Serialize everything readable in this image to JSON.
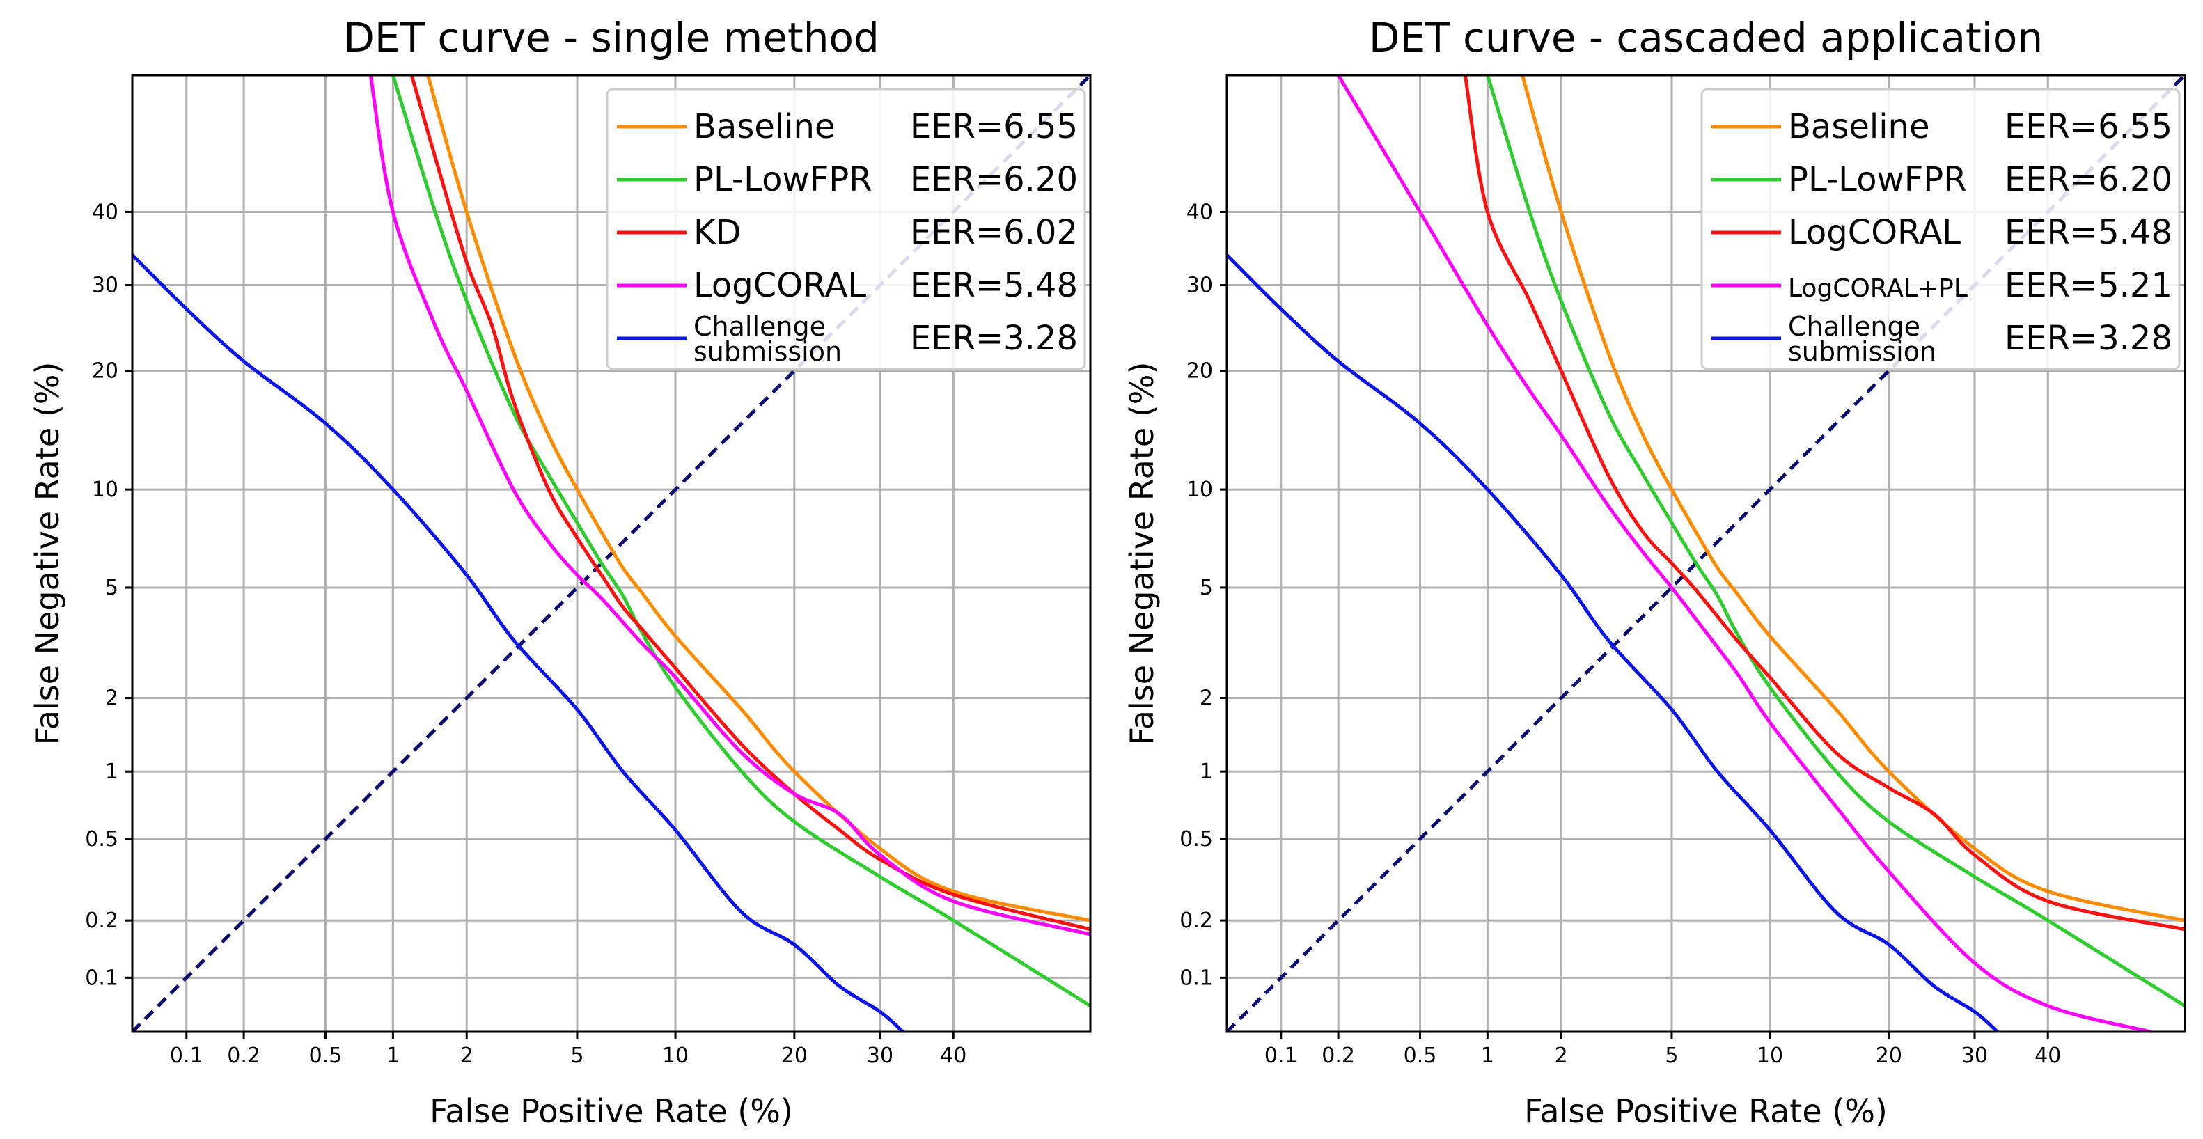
{
  "chart_data": [
    {
      "type": "line",
      "title": "DET curve - single method",
      "xlabel": "False Positive Rate (%)",
      "ylabel": "False Negative Rate (%)",
      "scale": "probit",
      "xlim": [
        0.05,
        60
      ],
      "ylim": [
        0.05,
        60
      ],
      "xticks": [
        0.1,
        0.2,
        0.5,
        1,
        2,
        5,
        10,
        20,
        30,
        40
      ],
      "xtick_labels": [
        "0.1",
        "0.2",
        "0.5",
        "1",
        "2",
        "5",
        "10",
        "20",
        "30",
        "40"
      ],
      "yticks": [
        0.1,
        0.2,
        0.5,
        1,
        2,
        5,
        10,
        20,
        30,
        40
      ],
      "ytick_labels": [
        "0.1",
        "0.2",
        "0.5",
        "1",
        "2",
        "5",
        "10",
        "20",
        "30",
        "40"
      ],
      "grid": true,
      "legend_position": "top-right",
      "series": [
        {
          "name": "Baseline",
          "eer_label": "EER=6.55",
          "color": "#ff8c00",
          "x": [
            1.4,
            2,
            3,
            4,
            5,
            6,
            7,
            8,
            10,
            15,
            20,
            30,
            40,
            60
          ],
          "y": [
            60,
            40,
            22,
            14,
            10,
            7.5,
            5.8,
            4.8,
            3.4,
            1.8,
            1.0,
            0.45,
            0.28,
            0.2
          ]
        },
        {
          "name": "PL-LowFPR",
          "eer_label": "EER=6.20",
          "color": "#2ecc2e",
          "x": [
            1.0,
            1.5,
            2,
            3,
            4,
            5,
            6,
            7,
            8,
            10,
            15,
            20,
            30,
            40,
            60
          ],
          "y": [
            60,
            40,
            28,
            16,
            11,
            8,
            6,
            4.7,
            3.5,
            2.2,
            1.0,
            0.6,
            0.33,
            0.2,
            0.07
          ]
        },
        {
          "name": "KD",
          "eer_label": "EER=6.02",
          "color": "#ff1010",
          "x": [
            1.2,
            1.5,
            2,
            2.5,
            3,
            4,
            5,
            6,
            7,
            8,
            10,
            15,
            20,
            25,
            30,
            40,
            60
          ],
          "y": [
            60,
            48,
            33,
            25,
            17,
            10,
            7.2,
            5.5,
            4.3,
            3.6,
            2.6,
            1.3,
            0.8,
            0.55,
            0.4,
            0.27,
            0.18
          ]
        },
        {
          "name": "LogCORAL",
          "eer_label": "EER=5.48",
          "color": "#ff00ff",
          "x": [
            0.8,
            1,
            1.5,
            2,
            3,
            4,
            5,
            6,
            8,
            10,
            15,
            20,
            25,
            30,
            40,
            60
          ],
          "y": [
            60,
            40,
            25,
            18,
            10,
            7,
            5.5,
            4.6,
            3.2,
            2.4,
            1.2,
            0.8,
            0.65,
            0.42,
            0.25,
            0.17
          ]
        },
        {
          "name": "Challenge submission",
          "eer_label": "EER=3.28",
          "color": "#0a14e6",
          "x": [
            0.05,
            0.1,
            0.2,
            0.5,
            1,
            2,
            3,
            5,
            7,
            10,
            15,
            20,
            25,
            30,
            33
          ],
          "y": [
            34,
            27,
            21,
            15,
            10,
            5.5,
            3.3,
            1.8,
            1.0,
            0.55,
            0.22,
            0.15,
            0.09,
            0.065,
            0.05
          ]
        }
      ]
    },
    {
      "type": "line",
      "title": "DET curve - cascaded application",
      "xlabel": "False Positive Rate (%)",
      "ylabel": "False Negative Rate (%)",
      "scale": "probit",
      "xlim": [
        0.05,
        60
      ],
      "ylim": [
        0.05,
        60
      ],
      "xticks": [
        0.1,
        0.2,
        0.5,
        1,
        2,
        5,
        10,
        20,
        30,
        40
      ],
      "xtick_labels": [
        "0.1",
        "0.2",
        "0.5",
        "1",
        "2",
        "5",
        "10",
        "20",
        "30",
        "40"
      ],
      "yticks": [
        0.1,
        0.2,
        0.5,
        1,
        2,
        5,
        10,
        20,
        30,
        40
      ],
      "ytick_labels": [
        "0.1",
        "0.2",
        "0.5",
        "1",
        "2",
        "5",
        "10",
        "20",
        "30",
        "40"
      ],
      "grid": true,
      "legend_position": "top-right",
      "series": [
        {
          "name": "Baseline",
          "eer_label": "EER=6.55",
          "color": "#ff8c00",
          "x": [
            1.4,
            2,
            3,
            4,
            5,
            6,
            7,
            8,
            10,
            15,
            20,
            30,
            40,
            60
          ],
          "y": [
            60,
            40,
            22,
            14,
            10,
            7.5,
            5.8,
            4.8,
            3.4,
            1.8,
            1.0,
            0.45,
            0.28,
            0.2
          ]
        },
        {
          "name": "PL-LowFPR",
          "eer_label": "EER=6.20",
          "color": "#2ecc2e",
          "x": [
            1.0,
            1.5,
            2,
            3,
            4,
            5,
            6,
            7,
            8,
            10,
            15,
            20,
            30,
            40,
            60
          ],
          "y": [
            60,
            40,
            28,
            16,
            11,
            8,
            6,
            4.7,
            3.5,
            2.2,
            1.0,
            0.6,
            0.33,
            0.2,
            0.07
          ]
        },
        {
          "name": "LogCORAL",
          "eer_label": "EER=5.48",
          "color": "#ff1010",
          "x": [
            0.8,
            1,
            1.5,
            2,
            3,
            4,
            5,
            6,
            8,
            10,
            15,
            20,
            25,
            30,
            40,
            60
          ],
          "y": [
            60,
            40,
            28,
            20,
            11,
            7.5,
            6.0,
            4.9,
            3.3,
            2.4,
            1.2,
            0.85,
            0.65,
            0.42,
            0.25,
            0.18
          ]
        },
        {
          "name": "LogCORAL+PL",
          "eer_label": "EER=5.21",
          "color": "#ff00ff",
          "x": [
            0.2,
            0.5,
            1,
            1.5,
            2,
            3,
            4,
            5,
            6,
            8,
            10,
            15,
            20,
            30,
            40,
            55
          ],
          "y": [
            60,
            40,
            25,
            18,
            14,
            9,
            6.5,
            5.0,
            3.9,
            2.5,
            1.6,
            0.7,
            0.35,
            0.12,
            0.07,
            0.05
          ]
        },
        {
          "name": "Challenge submission",
          "eer_label": "EER=3.28",
          "color": "#0a14e6",
          "x": [
            0.05,
            0.1,
            0.2,
            0.5,
            1,
            2,
            3,
            5,
            7,
            10,
            15,
            20,
            25,
            30,
            33
          ],
          "y": [
            34,
            27,
            21,
            15,
            10,
            5.5,
            3.3,
            1.8,
            1.0,
            0.55,
            0.22,
            0.15,
            0.09,
            0.065,
            0.05
          ]
        }
      ]
    }
  ]
}
